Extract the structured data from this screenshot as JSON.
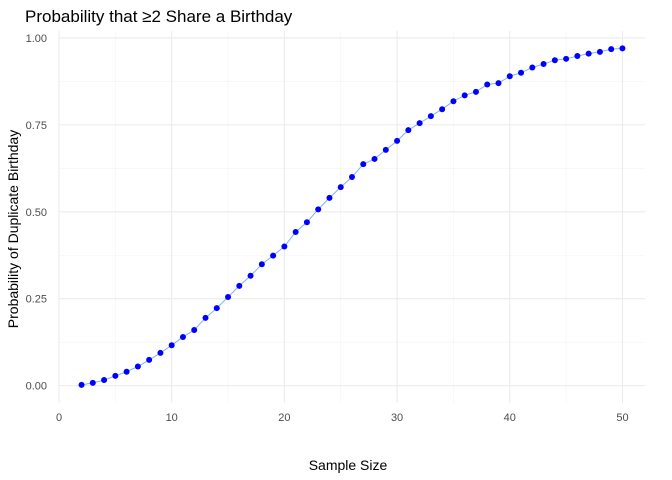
{
  "chart_data": {
    "type": "scatter",
    "title": "Probability that ≥2 Share a Birthday",
    "xlabel": "Sample Size",
    "ylabel": "Probability of Duplicate Birthday",
    "xlim": [
      0,
      52
    ],
    "ylim": [
      -0.05,
      1.02
    ],
    "x_ticks": [
      0,
      10,
      20,
      30,
      40,
      50
    ],
    "x_tick_labels": [
      "0",
      "10",
      "20",
      "30",
      "40",
      "50"
    ],
    "y_ticks": [
      0,
      0.25,
      0.5,
      0.75,
      1.0
    ],
    "y_tick_labels": [
      "0.00",
      "0.25",
      "0.50",
      "0.75",
      "1.00"
    ],
    "grid": true,
    "legend": "none",
    "colors": {
      "points": "#0000ff",
      "line": "#7fb2ff"
    },
    "series": [
      {
        "x": [
          2,
          3,
          4,
          5,
          6,
          7,
          8,
          9,
          10,
          11,
          12,
          13,
          14,
          15,
          16,
          17,
          18,
          19,
          20,
          21,
          22,
          23,
          24,
          25,
          26,
          27,
          28,
          29,
          30,
          31,
          32,
          33,
          34,
          35,
          36,
          37,
          38,
          39,
          40,
          41,
          42,
          43,
          44,
          45,
          46,
          47,
          48,
          49,
          50
        ],
        "values": [
          0.002,
          0.008,
          0.016,
          0.028,
          0.04,
          0.055,
          0.074,
          0.094,
          0.116,
          0.14,
          0.16,
          0.195,
          0.223,
          0.255,
          0.287,
          0.316,
          0.349,
          0.374,
          0.4,
          0.442,
          0.47,
          0.507,
          0.54,
          0.571,
          0.6,
          0.637,
          0.652,
          0.678,
          0.704,
          0.735,
          0.755,
          0.775,
          0.795,
          0.818,
          0.835,
          0.845,
          0.866,
          0.87,
          0.89,
          0.9,
          0.915,
          0.925,
          0.936,
          0.94,
          0.948,
          0.955,
          0.96,
          0.968,
          0.97
        ]
      }
    ]
  }
}
